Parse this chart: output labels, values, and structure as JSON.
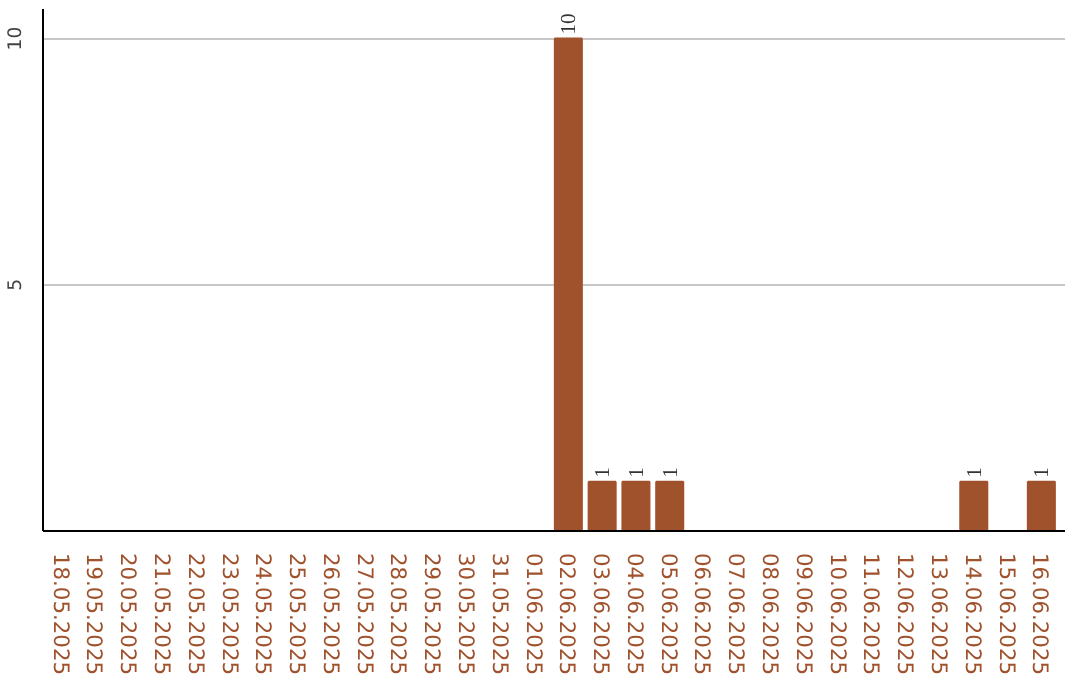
{
  "chart_data": {
    "type": "bar",
    "categories": [
      "18.05.2025",
      "19.05.2025",
      "20.05.2025",
      "21.05.2025",
      "22.05.2025",
      "23.05.2025",
      "24.05.2025",
      "25.05.2025",
      "26.05.2025",
      "27.05.2025",
      "28.05.2025",
      "29.05.2025",
      "30.05.2025",
      "31.05.2025",
      "01.06.2025",
      "02.06.2025",
      "03.06.2025",
      "04.06.2025",
      "05.06.2025",
      "06.06.2025",
      "07.06.2025",
      "08.06.2025",
      "09.06.2025",
      "10.06.2025",
      "11.06.2025",
      "12.06.2025",
      "13.06.2025",
      "14.06.2025",
      "15.06.2025",
      "16.06.2025"
    ],
    "values": [
      0,
      0,
      0,
      0,
      0,
      0,
      0,
      0,
      0,
      0,
      0,
      0,
      0,
      0,
      0,
      10,
      1,
      1,
      1,
      0,
      0,
      0,
      0,
      0,
      0,
      0,
      0,
      1,
      0,
      1
    ],
    "value_labels": [
      null,
      null,
      null,
      null,
      null,
      null,
      null,
      null,
      null,
      null,
      null,
      null,
      null,
      null,
      null,
      "10",
      "1",
      "1",
      "1",
      null,
      null,
      null,
      null,
      null,
      null,
      null,
      null,
      "1",
      null,
      "1"
    ],
    "color": "#a0522d",
    "ylim": [
      0,
      10.6
    ],
    "yticks": [
      5,
      10
    ],
    "grid": "y"
  }
}
